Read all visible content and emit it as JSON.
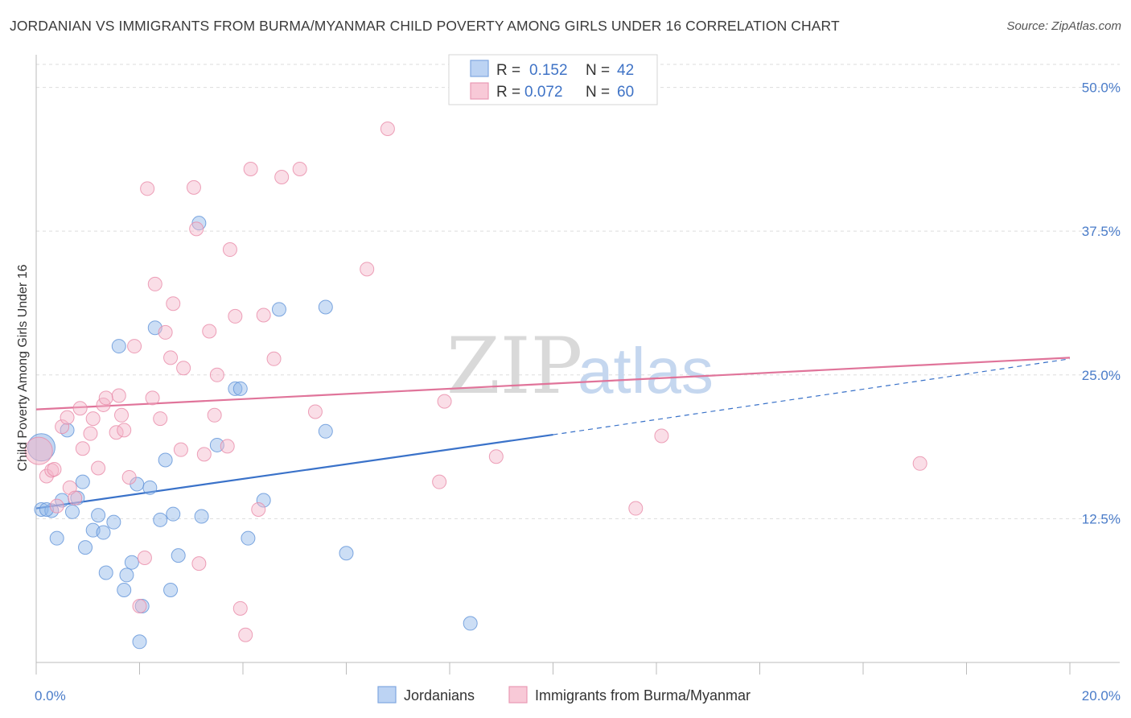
{
  "header": {
    "title": "JORDANIAN VS IMMIGRANTS FROM BURMA/MYANMAR CHILD POVERTY AMONG GIRLS UNDER 16 CORRELATION CHART",
    "source": "Source: ZipAtlas.com"
  },
  "legend": {
    "r_label": "R =",
    "n_label": "N =",
    "series1": {
      "r": "0.152",
      "n": "42"
    },
    "series2": {
      "r": "0.072",
      "n": "60"
    }
  },
  "watermark": {
    "zip": "ZIP",
    "atlas": "atlas"
  },
  "chart_data": {
    "type": "scatter",
    "title": "JORDANIAN VS IMMIGRANTS FROM BURMA/MYANMAR CHILD POVERTY AMONG GIRLS UNDER 16 CORRELATION CHART",
    "xlabel": "",
    "ylabel": "Child Poverty Among Girls Under 16",
    "xlim": [
      0,
      20
    ],
    "ylim": [
      0,
      52
    ],
    "x_ticks": [
      "0.0%",
      "20.0%"
    ],
    "y_ticks": [
      {
        "value": 12.5,
        "label": "12.5%"
      },
      {
        "value": 25.0,
        "label": "25.0%"
      },
      {
        "value": 37.5,
        "label": "37.5%"
      },
      {
        "value": 50.0,
        "label": "50.0%"
      }
    ],
    "grid": true,
    "legend_placement": "top-center",
    "series": [
      {
        "name": "Jordanians",
        "color": "#8fb5e8",
        "stroke": "#5f92d8",
        "trend": {
          "x0": 0,
          "y0": 13.4,
          "x1": 10,
          "y1": 19.8,
          "dashed_to_x": 20,
          "dashed_to_y": 26.4,
          "color": "#3a72c9"
        },
        "points": [
          [
            0.1,
            18.7,
            "big"
          ],
          [
            0.1,
            13.3
          ],
          [
            0.3,
            13.2
          ],
          [
            0.4,
            10.8
          ],
          [
            0.5,
            14.1
          ],
          [
            0.6,
            20.2
          ],
          [
            0.7,
            13.1
          ],
          [
            0.8,
            14.3
          ],
          [
            0.9,
            15.7
          ],
          [
            0.95,
            10.0
          ],
          [
            1.1,
            11.5
          ],
          [
            1.2,
            12.8
          ],
          [
            1.3,
            11.3
          ],
          [
            1.35,
            7.8
          ],
          [
            1.5,
            12.2
          ],
          [
            1.6,
            27.5
          ],
          [
            1.7,
            6.3
          ],
          [
            1.75,
            7.6
          ],
          [
            1.85,
            8.7
          ],
          [
            1.95,
            15.5
          ],
          [
            2.05,
            4.9
          ],
          [
            2.0,
            1.8
          ],
          [
            2.2,
            15.2
          ],
          [
            2.3,
            29.1
          ],
          [
            2.4,
            12.4
          ],
          [
            2.5,
            17.6
          ],
          [
            2.6,
            6.3
          ],
          [
            2.65,
            12.9
          ],
          [
            2.75,
            9.3
          ],
          [
            3.2,
            12.7
          ],
          [
            3.15,
            38.2
          ],
          [
            3.5,
            18.9
          ],
          [
            3.85,
            23.8
          ],
          [
            3.95,
            23.8
          ],
          [
            4.1,
            10.8
          ],
          [
            4.4,
            14.1
          ],
          [
            4.7,
            30.7
          ],
          [
            5.6,
            20.1
          ],
          [
            5.6,
            30.9
          ],
          [
            6.0,
            9.5
          ],
          [
            8.4,
            3.4
          ],
          [
            0.2,
            13.3
          ]
        ]
      },
      {
        "name": "Immigrants from Burma/Myanmar",
        "color": "#f4b6c9",
        "stroke": "#e889a8",
        "trend": {
          "x0": 0,
          "y0": 22.0,
          "x1": 20,
          "y1": 26.5,
          "color": "#e0749a"
        },
        "points": [
          [
            0.05,
            18.4,
            "big"
          ],
          [
            0.2,
            16.2
          ],
          [
            0.3,
            16.7
          ],
          [
            0.35,
            16.8
          ],
          [
            0.4,
            13.6
          ],
          [
            0.5,
            20.5
          ],
          [
            0.6,
            21.3
          ],
          [
            0.65,
            15.2
          ],
          [
            0.75,
            14.3
          ],
          [
            0.85,
            22.1
          ],
          [
            0.9,
            18.6
          ],
          [
            1.05,
            19.9
          ],
          [
            1.1,
            21.2
          ],
          [
            1.2,
            16.9
          ],
          [
            1.3,
            22.4
          ],
          [
            1.35,
            23.0
          ],
          [
            1.55,
            20.0
          ],
          [
            1.6,
            23.2
          ],
          [
            1.65,
            21.5
          ],
          [
            1.7,
            20.2
          ],
          [
            1.8,
            16.1
          ],
          [
            1.9,
            27.5
          ],
          [
            2.0,
            4.9
          ],
          [
            2.1,
            9.1
          ],
          [
            2.15,
            41.2
          ],
          [
            2.25,
            23.0
          ],
          [
            2.3,
            32.9
          ],
          [
            2.4,
            21.2
          ],
          [
            2.5,
            28.7
          ],
          [
            2.6,
            26.5
          ],
          [
            2.65,
            31.2
          ],
          [
            2.8,
            18.5
          ],
          [
            2.85,
            25.6
          ],
          [
            3.05,
            41.3
          ],
          [
            3.1,
            37.7
          ],
          [
            3.15,
            8.6
          ],
          [
            3.25,
            18.1
          ],
          [
            3.35,
            28.8
          ],
          [
            3.45,
            21.5
          ],
          [
            3.5,
            25.0
          ],
          [
            3.7,
            18.8
          ],
          [
            3.75,
            35.9
          ],
          [
            3.85,
            30.1
          ],
          [
            3.95,
            4.7
          ],
          [
            4.05,
            2.4
          ],
          [
            4.15,
            42.9
          ],
          [
            4.3,
            13.3
          ],
          [
            4.4,
            30.2
          ],
          [
            4.6,
            26.4
          ],
          [
            4.75,
            42.2
          ],
          [
            5.1,
            42.9
          ],
          [
            5.4,
            21.8
          ],
          [
            6.4,
            34.2
          ],
          [
            6.8,
            46.4
          ],
          [
            7.8,
            15.7
          ],
          [
            7.9,
            22.7
          ],
          [
            8.9,
            17.9
          ],
          [
            11.6,
            13.4
          ],
          [
            12.1,
            19.7
          ],
          [
            17.1,
            17.3
          ]
        ]
      }
    ]
  }
}
